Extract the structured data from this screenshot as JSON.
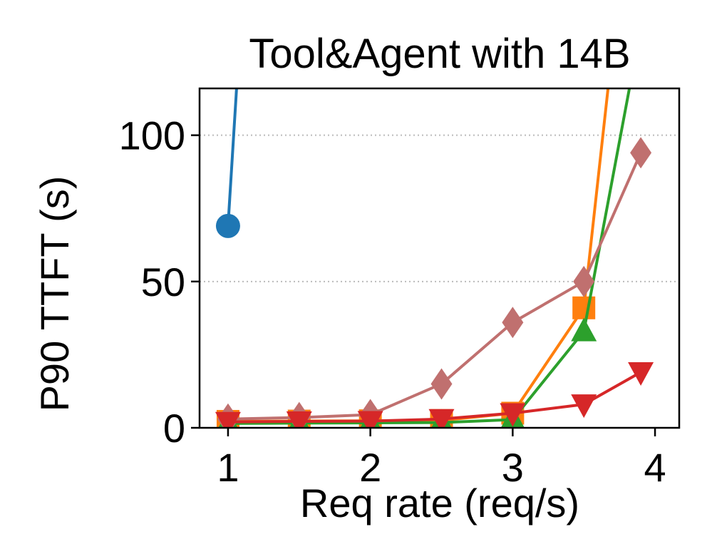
{
  "chart_data": {
    "type": "line",
    "title": "Tool&Agent with 14B",
    "xlabel": "Req rate (req/s)",
    "ylabel": "P90 TTFT (s)",
    "xlim": [
      0.8,
      4.17
    ],
    "ylim": [
      0,
      116
    ],
    "xticks": [
      1,
      2,
      3,
      4
    ],
    "yticks": [
      0,
      50,
      100
    ],
    "grid": "y-dotted",
    "series": [
      {
        "color": "#1f77b4",
        "marker": "circle",
        "points": [
          [
            1.0,
            69
          ],
          [
            1.06,
            116
          ]
        ]
      },
      {
        "color": "#ff7f0e",
        "marker": "square",
        "points": [
          [
            1.0,
            2.2
          ],
          [
            1.5,
            2.3
          ],
          [
            2.0,
            2.4
          ],
          [
            2.5,
            2.5
          ],
          [
            3.0,
            5.0
          ],
          [
            3.5,
            41
          ],
          [
            3.67,
            116
          ]
        ]
      },
      {
        "color": "#2ca02c",
        "marker": "triangle-up",
        "points": [
          [
            1.0,
            1.5
          ],
          [
            1.5,
            1.6
          ],
          [
            2.0,
            1.7
          ],
          [
            2.5,
            1.8
          ],
          [
            3.0,
            2.8
          ],
          [
            3.5,
            33
          ],
          [
            3.82,
            116
          ]
        ]
      },
      {
        "color": "#c0706f",
        "marker": "diamond",
        "points": [
          [
            1.0,
            3.0
          ],
          [
            1.5,
            3.5
          ],
          [
            2.0,
            4.5
          ],
          [
            2.5,
            15
          ],
          [
            3.0,
            36
          ],
          [
            3.5,
            50
          ],
          [
            3.9,
            94
          ]
        ]
      },
      {
        "color": "#d62728",
        "marker": "triangle-down",
        "points": [
          [
            1.0,
            2.0
          ],
          [
            1.5,
            2.2
          ],
          [
            2.0,
            2.3
          ],
          [
            2.5,
            3.0
          ],
          [
            3.0,
            5.0
          ],
          [
            3.5,
            8.0
          ],
          [
            3.9,
            19
          ]
        ]
      }
    ]
  }
}
